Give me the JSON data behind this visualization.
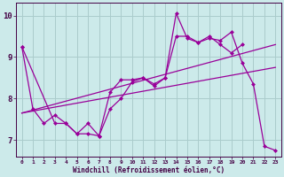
{
  "xlabel": "Windchill (Refroidissement éolien,°C)",
  "bg_color": "#cceaea",
  "line_color": "#990099",
  "grid_color": "#aacccc",
  "xlim": [
    -0.5,
    23.5
  ],
  "ylim": [
    6.6,
    10.3
  ],
  "yticks": [
    7,
    8,
    9,
    10
  ],
  "xticks": [
    0,
    1,
    2,
    3,
    4,
    5,
    6,
    7,
    8,
    9,
    10,
    11,
    12,
    13,
    14,
    15,
    16,
    17,
    18,
    19,
    20,
    21,
    22,
    23
  ],
  "series": {
    "line1_x": [
      0,
      1,
      2,
      3,
      4,
      5,
      6,
      7,
      8,
      9,
      10,
      11,
      12,
      13,
      14,
      15,
      16,
      17,
      18,
      19,
      20
    ],
    "line1_y": [
      9.25,
      7.75,
      7.4,
      7.6,
      7.4,
      7.15,
      7.4,
      7.1,
      8.15,
      8.45,
      8.45,
      8.5,
      8.35,
      8.5,
      9.5,
      9.5,
      9.35,
      9.5,
      9.3,
      9.1,
      9.3
    ],
    "line2_x": [
      0,
      3,
      4,
      5,
      6,
      7,
      8,
      9,
      10,
      11,
      12,
      13,
      14,
      15,
      16,
      17,
      18,
      19,
      20,
      21,
      22,
      23
    ],
    "line2_y": [
      9.25,
      7.4,
      7.4,
      7.15,
      7.15,
      7.1,
      7.75,
      8.0,
      8.4,
      8.5,
      8.3,
      8.5,
      10.05,
      9.45,
      9.35,
      9.45,
      9.4,
      9.6,
      8.85,
      8.35,
      6.85,
      6.75
    ],
    "line3_x": [
      0,
      23
    ],
    "line3_y": [
      7.65,
      9.3
    ],
    "line4_x": [
      0,
      23
    ],
    "line4_y": [
      7.65,
      8.75
    ]
  }
}
